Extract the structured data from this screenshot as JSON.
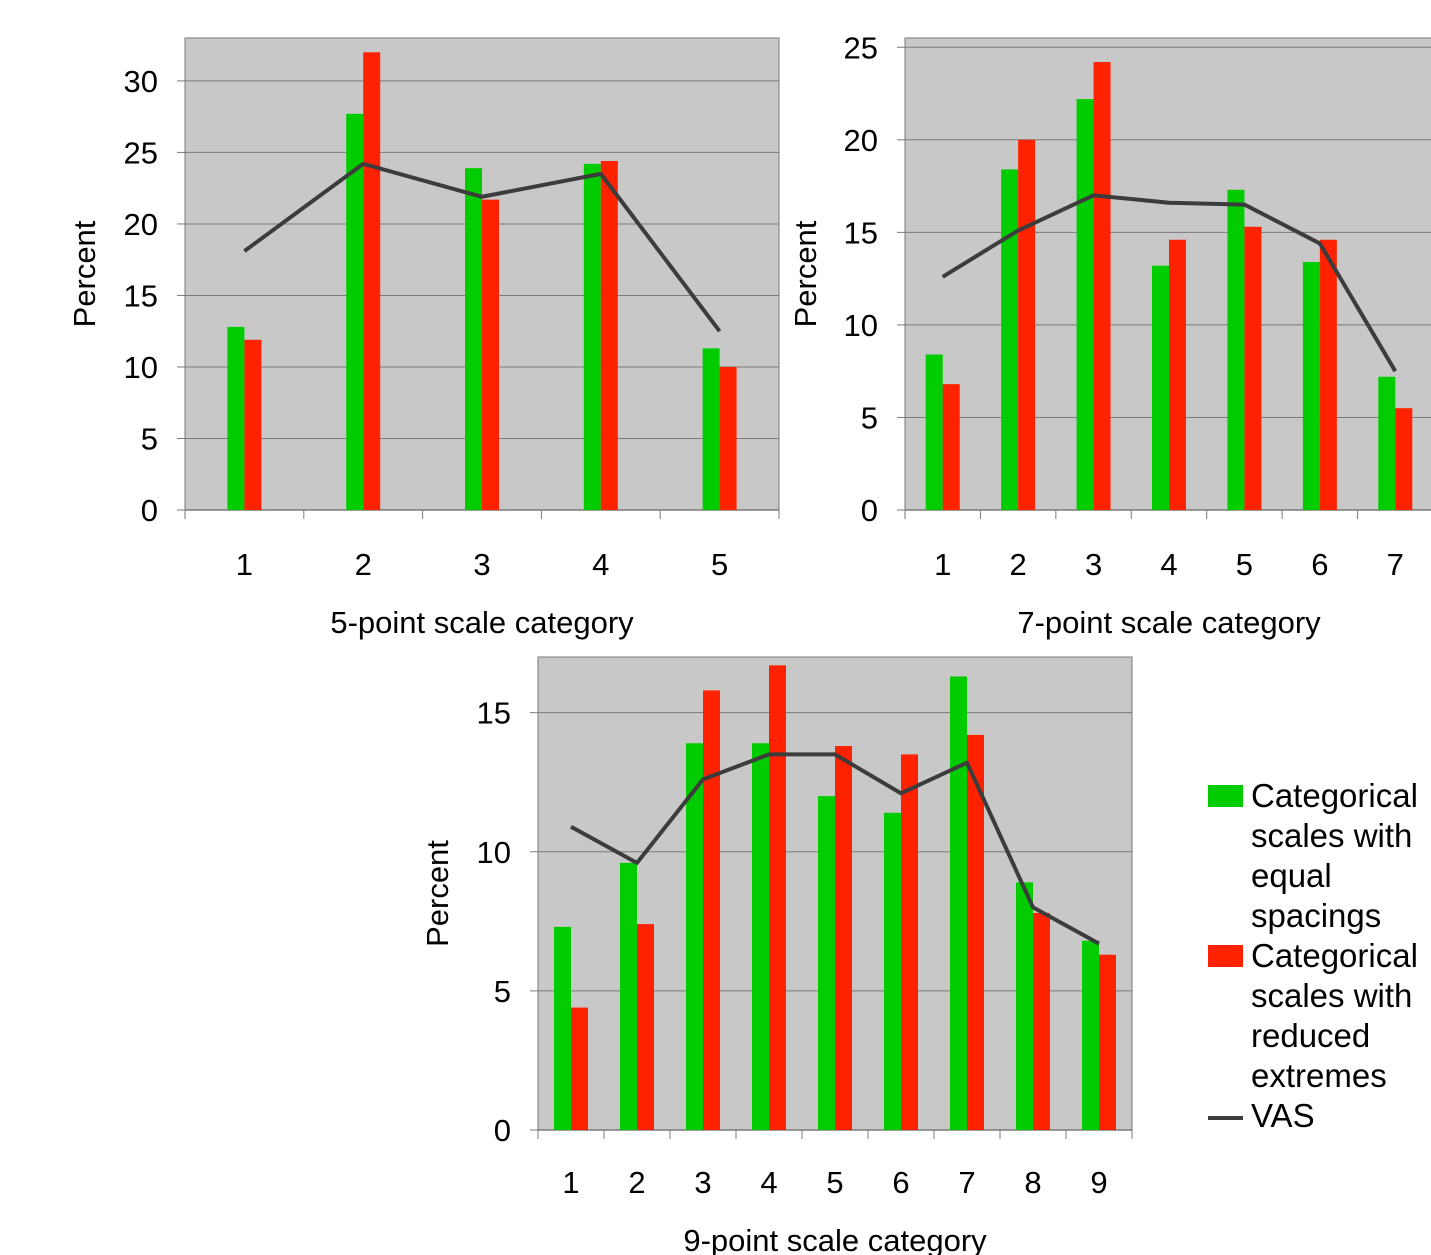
{
  "colors": {
    "equal": "#00cc00",
    "reduced": "#ff2200",
    "vas": "#3c3c3c",
    "plot_bg": "#c8c8c8"
  },
  "legend": {
    "items": [
      {
        "label": "Categorical\nscales with\nequal\nspacings",
        "color": "#00cc00",
        "kind": "bar"
      },
      {
        "label": "Categorical\nscales with\nreduced\nextremes",
        "color": "#ff2200",
        "kind": "bar"
      },
      {
        "label": "VAS",
        "color": "#3c3c3c",
        "kind": "line"
      }
    ]
  },
  "chart_data": [
    {
      "type": "bar",
      "xlabel": "5-point scale category",
      "ylabel": "Percent",
      "ylim": [
        0,
        33
      ],
      "yticks": [
        0,
        5,
        10,
        15,
        20,
        25,
        30
      ],
      "categories": [
        "1",
        "2",
        "3",
        "4",
        "5"
      ],
      "grid": true,
      "series": [
        {
          "name": "Categorical scales with equal spacings",
          "type": "bar",
          "values": [
            12.8,
            27.7,
            23.9,
            24.2,
            11.3
          ]
        },
        {
          "name": "Categorical scales with reduced extremes",
          "type": "bar",
          "values": [
            11.9,
            32.0,
            21.7,
            24.4,
            10.0
          ]
        },
        {
          "name": "VAS",
          "type": "line",
          "values": [
            18.1,
            24.2,
            21.9,
            23.5,
            12.5
          ]
        }
      ]
    },
    {
      "type": "bar",
      "xlabel": "7-point scale category",
      "ylabel": "Percent",
      "ylim": [
        0,
        25.5
      ],
      "yticks": [
        0,
        5,
        10,
        15,
        20,
        25
      ],
      "categories": [
        "1",
        "2",
        "3",
        "4",
        "5",
        "6",
        "7"
      ],
      "grid": true,
      "series": [
        {
          "name": "Categorical scales with equal spacings",
          "type": "bar",
          "values": [
            8.4,
            18.4,
            22.2,
            13.2,
            17.3,
            13.4,
            7.2
          ]
        },
        {
          "name": "Categorical scales with reduced extremes",
          "type": "bar",
          "values": [
            6.8,
            20.0,
            24.2,
            14.6,
            15.3,
            14.6,
            5.5
          ]
        },
        {
          "name": "VAS",
          "type": "line",
          "values": [
            12.6,
            15.1,
            17.0,
            16.6,
            16.5,
            14.4,
            7.5
          ]
        }
      ]
    },
    {
      "type": "bar",
      "xlabel": "9-point scale category",
      "ylabel": "Percent",
      "ylim": [
        0,
        17
      ],
      "yticks": [
        0,
        5,
        10,
        15
      ],
      "categories": [
        "1",
        "2",
        "3",
        "4",
        "5",
        "6",
        "7",
        "8",
        "9"
      ],
      "grid": true,
      "series": [
        {
          "name": "Categorical scales with equal spacings",
          "type": "bar",
          "values": [
            7.3,
            9.6,
            13.9,
            13.9,
            12.0,
            11.4,
            16.3,
            8.9,
            6.8
          ]
        },
        {
          "name": "Categorical scales with reduced extremes",
          "type": "bar",
          "values": [
            4.4,
            7.4,
            15.8,
            16.7,
            13.8,
            13.5,
            14.2,
            7.8,
            6.3
          ]
        },
        {
          "name": "VAS",
          "type": "line",
          "values": [
            10.9,
            9.6,
            12.6,
            13.5,
            13.5,
            12.1,
            13.2,
            8.0,
            6.7
          ]
        }
      ]
    }
  ]
}
